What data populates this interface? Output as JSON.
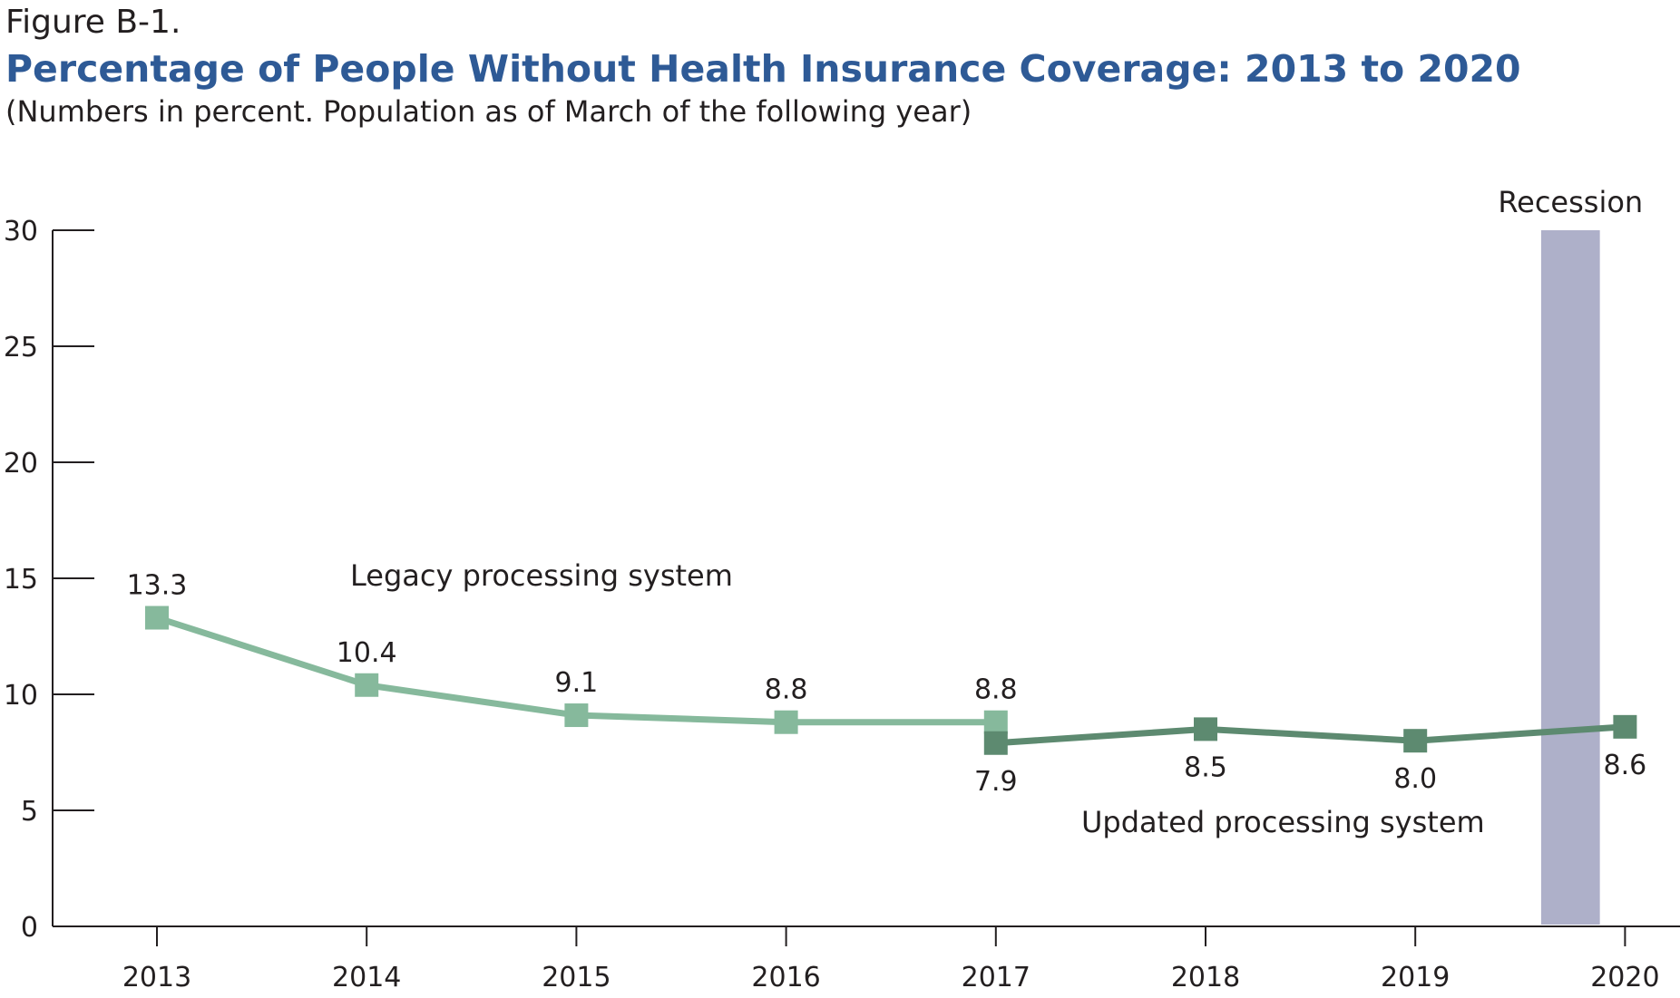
{
  "figure_label": "Figure B-1.",
  "chart_data": {
    "type": "line",
    "title": "Percentage of People Without Health Insurance Coverage: 2013 to 2020",
    "subtitle": "(Numbers in percent. Population as of March of the following year)",
    "xlabel": "",
    "ylabel": "",
    "ylim": [
      0,
      30
    ],
    "yticks": [
      0,
      5,
      10,
      15,
      20,
      25,
      30
    ],
    "categories": [
      "2013",
      "2014",
      "2015",
      "2016",
      "2017",
      "2018",
      "2019",
      "2020"
    ],
    "grid": false,
    "series": [
      {
        "name": "Legacy processing system",
        "color": "#86b99c",
        "x": [
          "2013",
          "2014",
          "2015",
          "2016",
          "2017"
        ],
        "values": [
          13.3,
          10.4,
          9.1,
          8.8,
          8.8
        ],
        "labels": [
          "13.3",
          "10.4",
          "9.1",
          "8.8",
          "8.8"
        ],
        "label_position": "above"
      },
      {
        "name": "Updated processing system",
        "color": "#5d8a70",
        "x": [
          "2017",
          "2018",
          "2019",
          "2020"
        ],
        "values": [
          7.9,
          8.5,
          8.0,
          8.6
        ],
        "labels": [
          "7.9",
          "8.5",
          "8.0",
          "8.6"
        ],
        "label_position": "below"
      }
    ],
    "recession": {
      "label": "Recession",
      "color": "#aeb0c9",
      "start": 2019.6,
      "end": 2019.88
    }
  }
}
